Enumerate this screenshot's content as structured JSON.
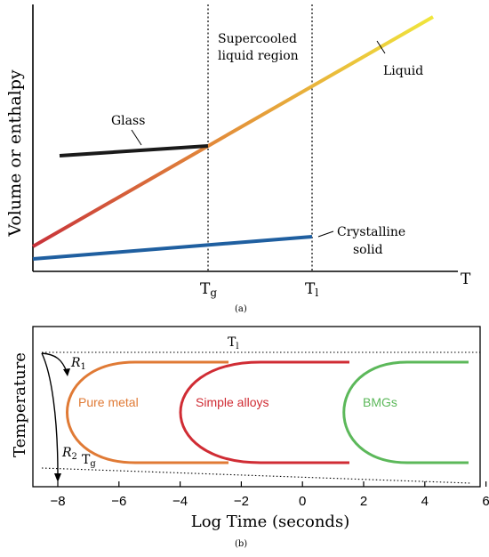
{
  "panel_a": {
    "y_axis_label": "Volume or enthalpy",
    "x_axis_label": "T",
    "tick_tg": "T",
    "tick_tg_sub": "g",
    "tick_tl": "T",
    "tick_tl_sub": "l",
    "region_label_line1": "Supercooled",
    "region_label_line2": "liquid region",
    "label_glass": "Glass",
    "label_liquid": "Liquid",
    "label_crystal_line1": "Crystalline",
    "label_crystal_line2": "solid",
    "caption": "(a)",
    "colors": {
      "liquid_start": "#c8323a",
      "liquid_mid": "#e28a3a",
      "liquid_end": "#f0e63c",
      "glass": "#1a1a1a",
      "crystal": "#1f5fa0"
    }
  },
  "panel_b": {
    "y_axis_label": "Temperature",
    "x_axis_label": "Log Time (seconds)",
    "x_ticks": [
      "−8",
      "−6",
      "−4",
      "−2",
      "0",
      "2",
      "4",
      "6"
    ],
    "tl_label": "T",
    "tl_sub": "l",
    "tg_label": "T",
    "tg_sub": "g",
    "r1_label": "R",
    "r1_sub": "1",
    "r2_label": "R",
    "r2_sub": "2",
    "curve_pure_metal": "Pure metal",
    "curve_simple_alloys": "Simple alloys",
    "curve_bmgs": "BMGs",
    "caption": "(b)",
    "colors": {
      "pure_metal": "#e07a35",
      "simple_alloys": "#d02c34",
      "bmgs": "#5cb85a"
    }
  }
}
